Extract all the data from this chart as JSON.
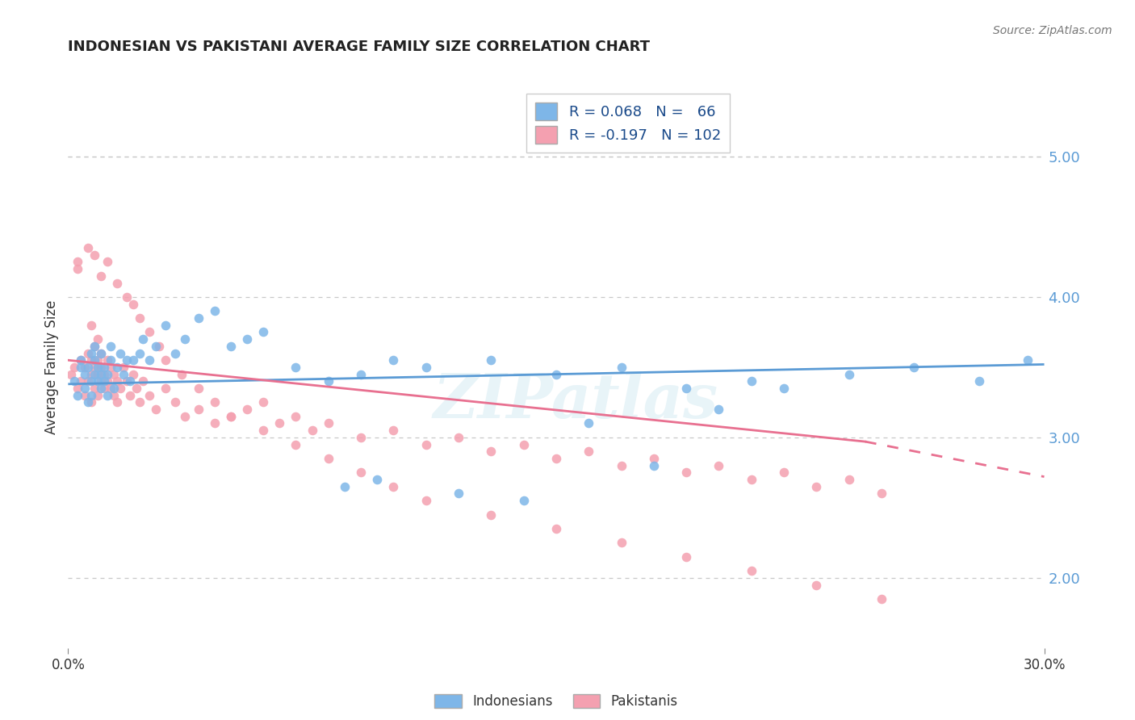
{
  "title": "INDONESIAN VS PAKISTANI AVERAGE FAMILY SIZE CORRELATION CHART",
  "source_text": "Source: ZipAtlas.com",
  "ylabel": "Average Family Size",
  "xlim": [
    0.0,
    0.3
  ],
  "ylim": [
    1.5,
    5.5
  ],
  "yticks_right": [
    2.0,
    3.0,
    4.0,
    5.0
  ],
  "watermark": "ZIPatlas",
  "color_indonesian": "#7eb6e8",
  "color_pakistani": "#f4a0b0",
  "color_trend_indonesian": "#5b9bd5",
  "color_trend_pakistani": "#e87090",
  "background_color": "#ffffff",
  "grid_color": "#c8c8c8",
  "indonesian_x": [
    0.002,
    0.003,
    0.004,
    0.004,
    0.005,
    0.005,
    0.006,
    0.006,
    0.007,
    0.007,
    0.007,
    0.008,
    0.008,
    0.008,
    0.009,
    0.009,
    0.01,
    0.01,
    0.01,
    0.011,
    0.011,
    0.012,
    0.012,
    0.013,
    0.013,
    0.014,
    0.015,
    0.016,
    0.017,
    0.018,
    0.019,
    0.02,
    0.022,
    0.023,
    0.025,
    0.027,
    0.03,
    0.033,
    0.036,
    0.04,
    0.045,
    0.05,
    0.055,
    0.06,
    0.07,
    0.08,
    0.09,
    0.1,
    0.11,
    0.13,
    0.15,
    0.17,
    0.19,
    0.21,
    0.24,
    0.26,
    0.28,
    0.295,
    0.085,
    0.095,
    0.12,
    0.14,
    0.16,
    0.18,
    0.2,
    0.22
  ],
  "indonesian_y": [
    3.4,
    3.3,
    3.5,
    3.55,
    3.35,
    3.45,
    3.25,
    3.5,
    3.6,
    3.4,
    3.3,
    3.55,
    3.45,
    3.65,
    3.4,
    3.5,
    3.35,
    3.45,
    3.6,
    3.4,
    3.5,
    3.3,
    3.45,
    3.55,
    3.65,
    3.35,
    3.5,
    3.6,
    3.45,
    3.55,
    3.4,
    3.55,
    3.6,
    3.7,
    3.55,
    3.65,
    3.8,
    3.6,
    3.7,
    3.85,
    3.9,
    3.65,
    3.7,
    3.75,
    3.5,
    3.4,
    3.45,
    3.55,
    3.5,
    3.55,
    3.45,
    3.5,
    3.35,
    3.4,
    3.45,
    3.5,
    3.4,
    3.55,
    2.65,
    2.7,
    2.6,
    2.55,
    3.1,
    2.8,
    3.2,
    3.35
  ],
  "pakistani_x": [
    0.001,
    0.002,
    0.003,
    0.003,
    0.004,
    0.004,
    0.005,
    0.005,
    0.006,
    0.006,
    0.007,
    0.007,
    0.007,
    0.008,
    0.008,
    0.008,
    0.009,
    0.009,
    0.009,
    0.01,
    0.01,
    0.01,
    0.011,
    0.011,
    0.012,
    0.012,
    0.013,
    0.013,
    0.014,
    0.014,
    0.015,
    0.015,
    0.016,
    0.017,
    0.018,
    0.019,
    0.02,
    0.021,
    0.022,
    0.023,
    0.025,
    0.027,
    0.03,
    0.033,
    0.036,
    0.04,
    0.045,
    0.05,
    0.055,
    0.06,
    0.065,
    0.07,
    0.075,
    0.08,
    0.09,
    0.1,
    0.11,
    0.12,
    0.13,
    0.14,
    0.15,
    0.16,
    0.17,
    0.18,
    0.19,
    0.2,
    0.21,
    0.22,
    0.23,
    0.24,
    0.25,
    0.003,
    0.006,
    0.008,
    0.01,
    0.012,
    0.015,
    0.018,
    0.02,
    0.022,
    0.025,
    0.028,
    0.03,
    0.035,
    0.04,
    0.045,
    0.05,
    0.06,
    0.07,
    0.08,
    0.09,
    0.1,
    0.11,
    0.13,
    0.15,
    0.17,
    0.19,
    0.21,
    0.23,
    0.25,
    0.007,
    0.009
  ],
  "pakistani_y": [
    3.45,
    3.5,
    3.35,
    4.25,
    3.4,
    3.55,
    3.3,
    3.5,
    3.4,
    3.6,
    3.25,
    3.45,
    3.55,
    3.35,
    3.5,
    3.65,
    3.3,
    3.45,
    3.55,
    3.4,
    3.5,
    3.6,
    3.35,
    3.45,
    3.4,
    3.55,
    3.35,
    3.5,
    3.3,
    3.45,
    3.25,
    3.4,
    3.35,
    3.5,
    3.4,
    3.3,
    3.45,
    3.35,
    3.25,
    3.4,
    3.3,
    3.2,
    3.35,
    3.25,
    3.15,
    3.2,
    3.1,
    3.15,
    3.2,
    3.25,
    3.1,
    3.15,
    3.05,
    3.1,
    3.0,
    3.05,
    2.95,
    3.0,
    2.9,
    2.95,
    2.85,
    2.9,
    2.8,
    2.85,
    2.75,
    2.8,
    2.7,
    2.75,
    2.65,
    2.7,
    2.6,
    4.2,
    4.35,
    4.3,
    4.15,
    4.25,
    4.1,
    4.0,
    3.95,
    3.85,
    3.75,
    3.65,
    3.55,
    3.45,
    3.35,
    3.25,
    3.15,
    3.05,
    2.95,
    2.85,
    2.75,
    2.65,
    2.55,
    2.45,
    2.35,
    2.25,
    2.15,
    2.05,
    1.95,
    1.85,
    3.8,
    3.7
  ],
  "trend_indon_x0": 0.0,
  "trend_indon_x1": 0.3,
  "trend_indon_y0": 3.38,
  "trend_indon_y1": 3.52,
  "trend_pakist_x0": 0.0,
  "trend_pakist_x1_solid": 0.245,
  "trend_pakist_x1_dash": 0.3,
  "trend_pakist_y0": 3.55,
  "trend_pakist_y1_solid": 2.97,
  "trend_pakist_y1_dash": 2.72
}
